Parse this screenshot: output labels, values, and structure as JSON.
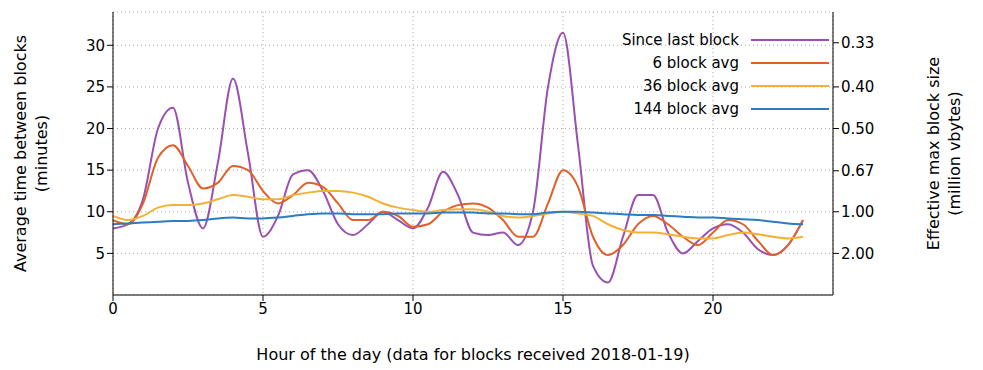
{
  "chart_data": {
    "type": "line",
    "xlabel": "Hour of the day (data for blocks received 2018-01-19)",
    "ylabel": "Average time between blocks\n(minutes)",
    "y2label": "Effective max block size\n(million vbytes)",
    "x": [
      0,
      0.5,
      1,
      1.5,
      2,
      2.5,
      3,
      3.5,
      4,
      4.5,
      5,
      5.5,
      6,
      6.5,
      7,
      7.5,
      8,
      8.5,
      9,
      9.5,
      10,
      10.5,
      11,
      11.5,
      12,
      12.5,
      13,
      13.5,
      14,
      14.5,
      15,
      15.5,
      16,
      16.5,
      17,
      17.5,
      18,
      18.5,
      19,
      19.5,
      20,
      20.5,
      21,
      21.5,
      22,
      22.5,
      23
    ],
    "series": [
      {
        "name": "Since last block",
        "color": "#9b4fb0",
        "values": [
          8,
          8.5,
          11.5,
          20,
          22.5,
          13.5,
          8,
          16,
          26,
          17,
          7,
          9.5,
          14.5,
          15,
          12.5,
          8.5,
          7.2,
          8.5,
          10,
          9,
          8,
          10.5,
          14.8,
          12,
          7.5,
          7.2,
          7.5,
          6,
          10,
          25,
          31.5,
          18,
          3.5,
          1.5,
          7,
          12,
          12,
          7.5,
          5,
          6.5,
          8,
          8.5,
          7.5,
          5.5,
          4.8,
          6,
          9
        ]
      },
      {
        "name": "6 block avg",
        "color": "#e0602a",
        "values": [
          9,
          8.5,
          11,
          16.5,
          18,
          15.5,
          12.8,
          13.5,
          15.5,
          15,
          12.5,
          11,
          12,
          13.5,
          13,
          11,
          9,
          9,
          10,
          9.5,
          8.2,
          8.5,
          10,
          10.8,
          11,
          10.5,
          9,
          7,
          7,
          11,
          15,
          13,
          7,
          4.8,
          6,
          8.5,
          9.5,
          8.5,
          7,
          6,
          7.5,
          9,
          8.5,
          6.5,
          4.8,
          6,
          9
        ]
      },
      {
        "name": "36 block avg",
        "color": "#f2b134",
        "values": [
          9.5,
          9,
          9.5,
          10.5,
          10.8,
          10.8,
          11,
          11.5,
          12,
          11.8,
          11.5,
          11.5,
          12,
          12.3,
          12.5,
          12.5,
          12.3,
          11.8,
          11,
          10.5,
          10.2,
          10,
          10.2,
          10.3,
          10.3,
          10,
          9.5,
          9.3,
          9.5,
          9.8,
          10,
          9.8,
          9.5,
          8.5,
          7.8,
          7.5,
          7.5,
          7.3,
          7,
          6.8,
          6.8,
          7.2,
          7.5,
          7.3,
          7,
          6.8,
          7
        ]
      },
      {
        "name": "144 block avg",
        "color": "#2a7cc4",
        "values": [
          8.5,
          8.6,
          8.7,
          8.8,
          8.9,
          8.9,
          9,
          9.2,
          9.3,
          9.2,
          9.2,
          9.3,
          9.5,
          9.7,
          9.8,
          9.8,
          9.7,
          9.7,
          9.7,
          9.8,
          9.8,
          9.8,
          9.9,
          9.9,
          9.9,
          9.8,
          9.8,
          9.7,
          9.7,
          9.9,
          10,
          10,
          9.9,
          9.8,
          9.7,
          9.6,
          9.6,
          9.5,
          9.4,
          9.3,
          9.3,
          9.2,
          9.1,
          9,
          8.8,
          8.6,
          8.5
        ]
      }
    ],
    "xlim": [
      0,
      24
    ],
    "xticks": [
      0,
      5,
      10,
      15,
      20
    ],
    "ylim": [
      0,
      34
    ],
    "yticks": [
      5,
      10,
      15,
      20,
      25,
      30
    ],
    "y2ticks": [
      0.33,
      {
        "value": 0.4,
        "label": "0.40"
      },
      {
        "value": 0.5,
        "label": "0.50"
      },
      0.67,
      {
        "value": 1,
        "label": "1.00"
      },
      {
        "value": 2,
        "label": "2.00"
      }
    ],
    "grid": true,
    "legend": "upper right"
  }
}
